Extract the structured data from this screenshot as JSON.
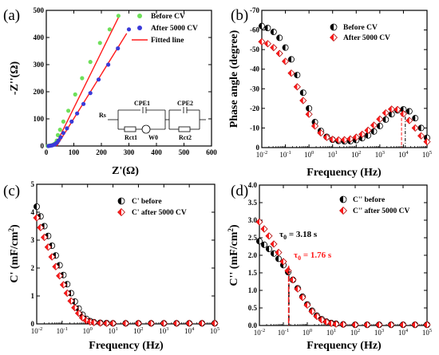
{
  "colors": {
    "green": "#6ee05a",
    "blue": "#3a3ad8",
    "red": "#ff1a1a",
    "black": "#000000",
    "red_edge": "#b00000"
  },
  "chart_data": [
    {
      "type": "scatter",
      "panel_label": "(a)",
      "xlabel": "Z'(Ω)",
      "ylabel": "-Z''(Ω)",
      "xlim": [
        0,
        600
      ],
      "ylim": [
        0,
        500
      ],
      "xticks": [
        "0",
        "100",
        "200",
        "300",
        "400",
        "500",
        "600"
      ],
      "yticks": [
        "0",
        "100",
        "200",
        "300",
        "400",
        "500"
      ],
      "legend": [
        "Before CV",
        "After 5000 CV",
        "Fitted line"
      ],
      "legend_placement": "top-right",
      "series": [
        {
          "name": "Before CV",
          "x": [
            5,
            10,
            15,
            20,
            25,
            30,
            35,
            38,
            42,
            50,
            62,
            80,
            105,
            130,
            160,
            195,
            230,
            262
          ],
          "y": [
            0,
            1,
            2,
            3,
            5,
            8,
            12,
            20,
            40,
            60,
            90,
            130,
            190,
            250,
            310,
            380,
            430,
            480
          ]
        },
        {
          "name": "After 5000 CV",
          "x": [
            8,
            14,
            20,
            26,
            32,
            38,
            44,
            52,
            62,
            75,
            92,
            112,
            135,
            160,
            190,
            225,
            260,
            300
          ],
          "y": [
            0,
            1,
            2,
            4,
            7,
            12,
            20,
            32,
            48,
            65,
            90,
            120,
            155,
            195,
            245,
            300,
            360,
            430
          ]
        },
        {
          "name": "Fitted line",
          "x1": [
            32,
            265
          ],
          "y1": [
            0,
            480
          ],
          "x2": [
            38,
            292
          ],
          "y2": [
            0,
            415
          ]
        }
      ],
      "circuit": {
        "labels": [
          "Rs",
          "CPE1",
          "CPE2",
          "Rct1",
          "W0",
          "Rct2"
        ]
      }
    },
    {
      "type": "scatter",
      "panel_label": "(b)",
      "xlabel": "Frequency (Hz)",
      "ylabel": "Phase angle (degree)",
      "xscale": "log",
      "xlim": [
        0.01,
        100000
      ],
      "ylim": [
        0,
        -70
      ],
      "xticks": [
        "10-2",
        "10-1",
        "100",
        "101",
        "102",
        "103",
        "104",
        "105"
      ],
      "yticks": [
        "0",
        "-10",
        "-20",
        "-30",
        "-40",
        "-50",
        "-60",
        "-70"
      ],
      "legend": [
        "Before CV",
        "After 5000 CV"
      ],
      "legend_placement": "top-right",
      "series": [
        {
          "name": "Before CV",
          "logx": [
            -2,
            -1.75,
            -1.5,
            -1.25,
            -1,
            -0.75,
            -0.5,
            -0.25,
            0,
            0.25,
            0.5,
            0.75,
            1,
            1.25,
            1.5,
            1.75,
            2,
            2.25,
            2.5,
            2.75,
            3,
            3.25,
            3.5,
            3.75,
            4,
            4.25,
            4.5,
            4.75,
            5
          ],
          "y": [
            -62,
            -61,
            -59,
            -56,
            -51,
            -45,
            -37,
            -28,
            -20,
            -13,
            -8.5,
            -5.5,
            -4,
            -3.4,
            -3.2,
            -3.3,
            -3.8,
            -4.8,
            -6.2,
            -8.2,
            -11,
            -14.3,
            -17,
            -19,
            -19.5,
            -18.5,
            -15,
            -10,
            -5
          ]
        },
        {
          "name": "After 5000 CV",
          "logx": [
            -2,
            -1.75,
            -1.5,
            -1.25,
            -1,
            -0.75,
            -0.5,
            -0.25,
            0,
            0.25,
            0.5,
            0.75,
            1,
            1.25,
            1.5,
            1.75,
            2,
            2.25,
            2.5,
            2.75,
            3,
            3.25,
            3.5,
            3.75,
            4,
            4.25,
            4.5,
            4.75,
            5
          ],
          "y": [
            -54,
            -53,
            -51,
            -48,
            -44,
            -38,
            -31,
            -24,
            -17,
            -11,
            -7.5,
            -5.2,
            -4.2,
            -3.9,
            -4,
            -4.4,
            -5.3,
            -6.8,
            -8.8,
            -11.4,
            -14.5,
            -17.7,
            -19.6,
            -19.4,
            -17.2,
            -13.8,
            -10,
            -6,
            -3
          ]
        }
      ]
    },
    {
      "type": "scatter",
      "panel_label": "(c)",
      "xlabel": "Frequency (Hz)",
      "ylabel": "C' (mF/cm2)",
      "xscale": "log",
      "xlim": [
        0.01,
        100000
      ],
      "ylim": [
        0,
        5
      ],
      "xticks": [
        "10-2",
        "10-1",
        "100",
        "101",
        "102",
        "103",
        "104",
        "105"
      ],
      "yticks": [
        "0",
        "1",
        "2",
        "3",
        "4",
        "5"
      ],
      "legend": [
        "C' before",
        "C' after 5000 CV"
      ],
      "legend_placement": "top-right",
      "series": [
        {
          "name": "C' before",
          "logx": [
            -2,
            -1.85,
            -1.7,
            -1.55,
            -1.4,
            -1.25,
            -1.1,
            -0.95,
            -0.8,
            -0.65,
            -0.5,
            -0.35,
            -0.2,
            -0.05,
            0.1,
            0.25,
            0.5,
            0.75,
            1,
            1.5,
            2,
            2.5,
            3,
            3.5,
            4,
            4.5,
            5
          ],
          "y": [
            4.2,
            3.85,
            3.5,
            3.15,
            2.8,
            2.45,
            2.1,
            1.75,
            1.42,
            1.1,
            0.8,
            0.55,
            0.33,
            0.18,
            0.1,
            0.06,
            0.04,
            0.03,
            0.02,
            0.02,
            0.02,
            0.02,
            0.02,
            0.02,
            0.02,
            0.02,
            0.02
          ]
        },
        {
          "name": "C' after 5000 CV",
          "logx": [
            -2,
            -1.85,
            -1.7,
            -1.55,
            -1.4,
            -1.25,
            -1.1,
            -0.95,
            -0.8,
            -0.65,
            -0.5,
            -0.35,
            -0.2,
            -0.05,
            0.1,
            0.25,
            0.5,
            0.75,
            1,
            1.5,
            2,
            2.5,
            3,
            3.5,
            4,
            4.5,
            5
          ],
          "y": [
            3.8,
            3.45,
            3.1,
            2.75,
            2.4,
            2.05,
            1.72,
            1.4,
            1.1,
            0.82,
            0.58,
            0.38,
            0.22,
            0.12,
            0.07,
            0.05,
            0.03,
            0.02,
            0.02,
            0.02,
            0.02,
            0.02,
            0.02,
            0.02,
            0.02,
            0.02,
            0.02
          ]
        }
      ]
    },
    {
      "type": "scatter",
      "panel_label": "(d)",
      "xlabel": "Frequency (Hz)",
      "ylabel": "C'' (mF/cm2)",
      "xscale": "log",
      "xlim": [
        0.01,
        100000
      ],
      "ylim": [
        0,
        4
      ],
      "xticks": [
        "10-2",
        "10-1",
        "100",
        "101",
        "102",
        "103",
        "104",
        "105"
      ],
      "yticks": [
        "0.0",
        "0.5",
        "1.0",
        "1.5",
        "2.0",
        "2.5",
        "3.0",
        "3.5",
        "4.0"
      ],
      "legend": [
        "C'' before",
        "C'' after 5000 CV"
      ],
      "legend_placement": "top-right",
      "annotations": [
        "τ0 = 3.18 s",
        "τ0 = 1.76 s"
      ],
      "tau_frequency": [
        0.314,
        0.568
      ],
      "series": [
        {
          "name": "C'' before",
          "logx": [
            -2,
            -1.8,
            -1.6,
            -1.4,
            -1.2,
            -1,
            -0.8,
            -0.6,
            -0.4,
            -0.2,
            0,
            0.2,
            0.4,
            0.6,
            0.8,
            1,
            1.2,
            1.5,
            2,
            2.5,
            3,
            3.5,
            4,
            4.5,
            5
          ],
          "y": [
            2.4,
            2.3,
            2.18,
            2.05,
            1.9,
            1.72,
            1.52,
            1.3,
            1.06,
            0.82,
            0.6,
            0.42,
            0.28,
            0.18,
            0.11,
            0.07,
            0.05,
            0.03,
            0.02,
            0.02,
            0.02,
            0.02,
            0.02,
            0.02,
            0.02
          ]
        },
        {
          "name": "C'' after 5000 CV",
          "logx": [
            -2,
            -1.8,
            -1.6,
            -1.4,
            -1.2,
            -1,
            -0.8,
            -0.6,
            -0.4,
            -0.2,
            0,
            0.2,
            0.4,
            0.6,
            0.8,
            1,
            1.2,
            1.5,
            2,
            2.5,
            3,
            3.5,
            4,
            4.5,
            5
          ],
          "y": [
            2.95,
            2.75,
            2.55,
            2.32,
            2.08,
            1.82,
            1.56,
            1.3,
            1.04,
            0.8,
            0.58,
            0.4,
            0.26,
            0.16,
            0.1,
            0.06,
            0.04,
            0.03,
            0.02,
            0.02,
            0.02,
            0.02,
            0.02,
            0.02,
            0.02
          ]
        }
      ]
    }
  ]
}
